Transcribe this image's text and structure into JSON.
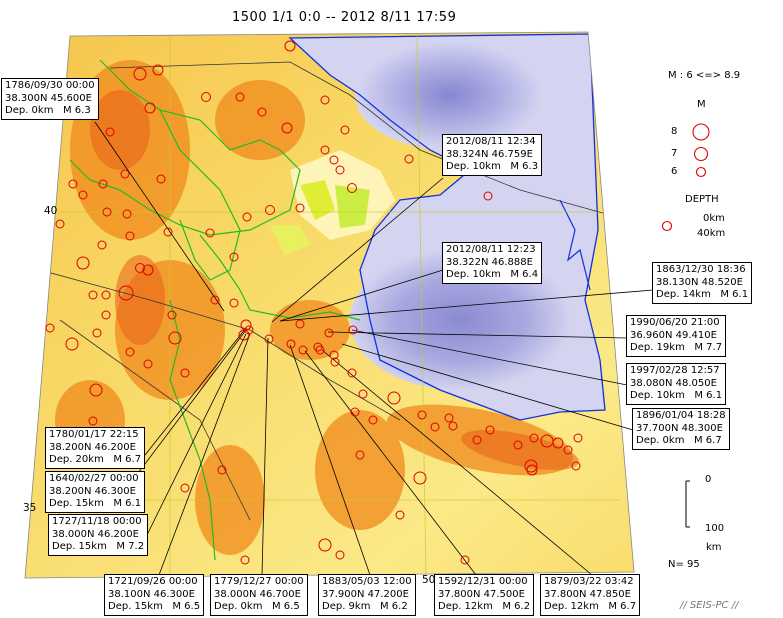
{
  "header": {
    "title": "1500 1/1 0:0 -- 2012 8/11 17:59"
  },
  "axes": {
    "lat_ticks": [
      "40",
      "35"
    ],
    "lon_ticks": [
      "50"
    ]
  },
  "events": [
    {
      "id": "e1786",
      "date": "1786/09/30 00:00",
      "coord": "38.300N  45.600E",
      "dep": "Dep. 0km",
      "mag": "M 6.3"
    },
    {
      "id": "e2012a",
      "date": "2012/08/11 12:34",
      "coord": "38.324N  46.759E",
      "dep": "Dep. 10km",
      "mag": "M 6.3"
    },
    {
      "id": "e2012b",
      "date": "2012/08/11 12:23",
      "coord": "38.322N  46.888E",
      "dep": "Dep. 10km",
      "mag": "M 6.4"
    },
    {
      "id": "e1863",
      "date": "1863/12/30 18:36",
      "coord": "38.130N  48.520E",
      "dep": "Dep. 14km",
      "mag": "M 6.1"
    },
    {
      "id": "e1990",
      "date": "1990/06/20 21:00",
      "coord": "36.960N  49.410E",
      "dep": "Dep. 19km",
      "mag": "M 7.7"
    },
    {
      "id": "e1997",
      "date": "1997/02/28 12:57",
      "coord": "38.080N  48.050E",
      "dep": "Dep. 10km",
      "mag": "M 6.1"
    },
    {
      "id": "e1896",
      "date": "1896/01/04 18:28",
      "coord": "37.700N  48.300E",
      "dep": "Dep. 0km",
      "mag": "M 6.7"
    },
    {
      "id": "e1780",
      "date": "1780/01/17 22:15",
      "coord": "38.200N  46.200E",
      "dep": "Dep. 20km",
      "mag": "M 6.7"
    },
    {
      "id": "e1640",
      "date": "1640/02/27 00:00",
      "coord": "38.200N  46.300E",
      "dep": "Dep. 15km",
      "mag": "M 6.1"
    },
    {
      "id": "e1727",
      "date": "1727/11/18 00:00",
      "coord": "38.000N  46.200E",
      "dep": "Dep. 15km",
      "mag": "M 7.2"
    },
    {
      "id": "e1721",
      "date": "1721/09/26 00:00",
      "coord": "38.100N  46.300E",
      "dep": "Dep. 15km",
      "mag": "M 6.5"
    },
    {
      "id": "e1779",
      "date": "1779/12/27 00:00",
      "coord": "38.000N  46.700E",
      "dep": "Dep. 0km",
      "mag": "M 6.5"
    },
    {
      "id": "e1883",
      "date": "1883/05/03 12:00",
      "coord": "37.900N  47.200E",
      "dep": "Dep. 9km",
      "mag": "M 6.2"
    },
    {
      "id": "e1592",
      "date": "1592/12/31 00:00",
      "coord": "37.800N  47.500E",
      "dep": "Dep. 12km",
      "mag": "M 6.2"
    },
    {
      "id": "e1879",
      "date": "1879/03/22 03:42",
      "coord": "37.800N  47.850E",
      "dep": "Dep. 12km",
      "mag": "M 6.7"
    }
  ],
  "legend": {
    "mag_range": "M : 6 <=> 8.9",
    "mag_title": "M",
    "mag_levels": [
      "8",
      "7",
      "6"
    ],
    "depth_title": "DEPTH",
    "depth_min": "0km",
    "depth_max": "40km",
    "depth_scale_top": "0",
    "depth_scale_bottom": "100",
    "depth_scale_unit": "km",
    "count": "N= 95"
  },
  "credit": "// SEIS-PC //",
  "colors": {
    "quake_stroke": "#e00000",
    "sea_dark": "#8f8fd6",
    "sea_light": "#d4d4f0",
    "coast": "#1030e0",
    "border": "#22bb22",
    "grid": "#c8c830",
    "fault": "#000000"
  }
}
